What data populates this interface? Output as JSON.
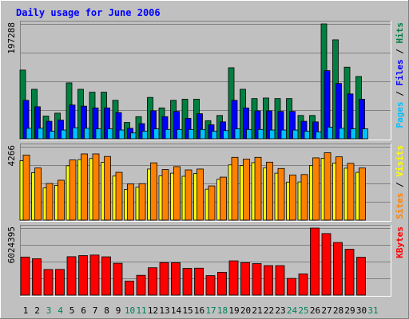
{
  "chart_data": [
    {
      "type": "bar",
      "title": "Daily usage for June 2006",
      "ylabel_parts": [
        "Pages",
        " / ",
        "Files",
        " / ",
        "Hits"
      ],
      "ymax_label": "197288",
      "ylim": [
        0,
        197288
      ],
      "categories": [
        "1",
        "2",
        "3",
        "4",
        "5",
        "6",
        "7",
        "8",
        "9",
        "10",
        "11",
        "12",
        "13",
        "14",
        "15",
        "16",
        "17",
        "18",
        "19",
        "20",
        "21",
        "22",
        "23",
        "24",
        "25",
        "26",
        "27",
        "28",
        "29",
        "30",
        "31"
      ],
      "weekend_days": [
        "3",
        "4",
        "10",
        "11",
        "17",
        "18",
        "24",
        "25",
        "31"
      ],
      "grid": true,
      "series": [
        {
          "name": "Hits",
          "values": [
            118000,
            85000,
            39000,
            44000,
            96000,
            85000,
            80000,
            80000,
            66000,
            28000,
            38000,
            71000,
            53000,
            66000,
            68000,
            68000,
            31000,
            40000,
            122000,
            85000,
            69000,
            70000,
            69000,
            69000,
            40000,
            40000,
            197288,
            170000,
            123000,
            107000,
            0
          ]
        },
        {
          "name": "Files",
          "values": [
            66000,
            55000,
            30000,
            32000,
            58000,
            56000,
            53000,
            53000,
            45000,
            18000,
            26000,
            48000,
            38000,
            47000,
            35000,
            43000,
            24000,
            29000,
            66000,
            53000,
            48000,
            48000,
            47000,
            47000,
            30000,
            29000,
            117000,
            95000,
            77000,
            68000,
            0
          ]
        },
        {
          "name": "Pages",
          "values": [
            18000,
            18000,
            13000,
            15000,
            19000,
            18000,
            17000,
            17000,
            15000,
            10000,
            13000,
            17000,
            16000,
            16000,
            16000,
            16000,
            13000,
            14000,
            17000,
            16000,
            16000,
            15000,
            15000,
            15000,
            13000,
            12000,
            20000,
            18000,
            17000,
            17000,
            0
          ]
        }
      ]
    },
    {
      "type": "bar",
      "ylabel_parts": [
        "Sites",
        " / ",
        "Visits"
      ],
      "ymax_label": "4266",
      "ylim": [
        0,
        4266
      ],
      "categories": [
        "1",
        "2",
        "3",
        "4",
        "5",
        "6",
        "7",
        "8",
        "9",
        "10",
        "11",
        "12",
        "13",
        "14",
        "15",
        "16",
        "17",
        "18",
        "19",
        "20",
        "21",
        "22",
        "23",
        "24",
        "25",
        "26",
        "27",
        "28",
        "29",
        "30",
        "31"
      ],
      "grid": true,
      "series": [
        {
          "name": "Visits",
          "values": [
            3450,
            2760,
            1870,
            2020,
            3160,
            3520,
            3580,
            3360,
            2560,
            1780,
            1910,
            2970,
            2570,
            2730,
            2550,
            2710,
            1800,
            2370,
            3210,
            3170,
            3340,
            3030,
            2730,
            2210,
            2220,
            3180,
            3590,
            3320,
            3020,
            2780,
            0
          ]
        },
        {
          "name": "Sites",
          "values": [
            3780,
            3030,
            2130,
            2320,
            3500,
            3850,
            3850,
            3700,
            2780,
            2100,
            2120,
            3330,
            2940,
            3110,
            2920,
            2970,
            1990,
            2500,
            3650,
            3550,
            3650,
            3370,
            3000,
            2620,
            2650,
            3620,
            3920,
            3680,
            3300,
            3030,
            0
          ]
        }
      ]
    },
    {
      "type": "bar",
      "ylabel_parts": [
        "KBytes"
      ],
      "ymax_label": "6024395",
      "ylim": [
        0,
        6024395
      ],
      "categories": [
        "1",
        "2",
        "3",
        "4",
        "5",
        "6",
        "7",
        "8",
        "9",
        "10",
        "11",
        "12",
        "13",
        "14",
        "15",
        "16",
        "17",
        "18",
        "19",
        "20",
        "21",
        "22",
        "23",
        "24",
        "25",
        "26",
        "27",
        "28",
        "29",
        "30",
        "31"
      ],
      "grid": true,
      "series": [
        {
          "name": "KBytes",
          "values": [
            3420000,
            3270000,
            2300000,
            2310000,
            3450000,
            3550000,
            3600000,
            3440000,
            2860000,
            1260000,
            1780000,
            2460000,
            2920000,
            2910000,
            2400000,
            2420000,
            1750000,
            2050000,
            3080000,
            2920000,
            2830000,
            2650000,
            2650000,
            1500000,
            1900000,
            6024395,
            5530000,
            4730000,
            4120000,
            3400000,
            0
          ]
        }
      ]
    }
  ],
  "colors": {
    "title": "#0000ff",
    "hits": "#008040",
    "files": "#0000ff",
    "pages": "#00c0ff",
    "visits": "#ffff00",
    "sites": "#ff8000",
    "kbytes": "#ff0000",
    "weekday": "#000000",
    "weekend": "#00805c"
  }
}
